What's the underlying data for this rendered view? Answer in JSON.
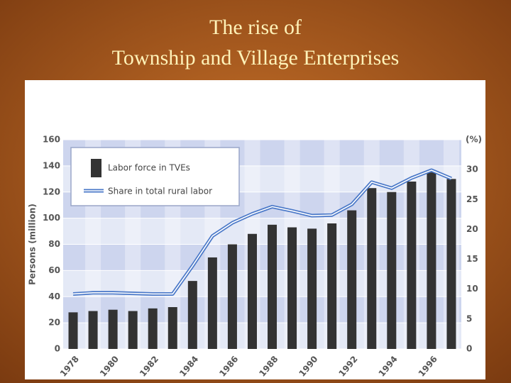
{
  "title_lines": [
    "The rise of",
    "Township and Village Enterprises"
  ],
  "chart_data": {
    "type": "bar_line",
    "ylabel": "Persons (million)",
    "y2label": "(%)",
    "categories": [
      "1978",
      null,
      "1980",
      null,
      "1982",
      null,
      "1984",
      null,
      "1986",
      null,
      "1988",
      null,
      "1990",
      null,
      "1992",
      null,
      "1994",
      null,
      "1996",
      null
    ],
    "series": [
      {
        "name": "Labor force in TVEs",
        "type": "bar",
        "color": "#333333",
        "values": [
          28,
          29,
          30,
          29,
          31,
          32,
          52,
          70,
          80,
          88,
          95,
          93,
          92,
          96,
          106,
          123,
          120,
          128,
          135,
          130
        ]
      },
      {
        "name": "Share in total rural labor",
        "type": "line",
        "axis": "y2",
        "color": "#4a78c8",
        "values": [
          9.2,
          9.4,
          9.4,
          9.3,
          9.2,
          9.2,
          13.9,
          18.9,
          21.1,
          22.6,
          23.8,
          23.1,
          22.3,
          22.4,
          24.2,
          27.9,
          26.9,
          28.6,
          29.9,
          28.5
        ]
      }
    ],
    "ylim": [
      0,
      160
    ],
    "yticks": [
      0,
      20,
      40,
      60,
      80,
      100,
      120,
      140,
      160
    ],
    "y2lim": [
      0,
      35
    ],
    "y2ticks": [
      0,
      5,
      10,
      15,
      20,
      25,
      30
    ],
    "legend": "upper left",
    "grid": true
  }
}
